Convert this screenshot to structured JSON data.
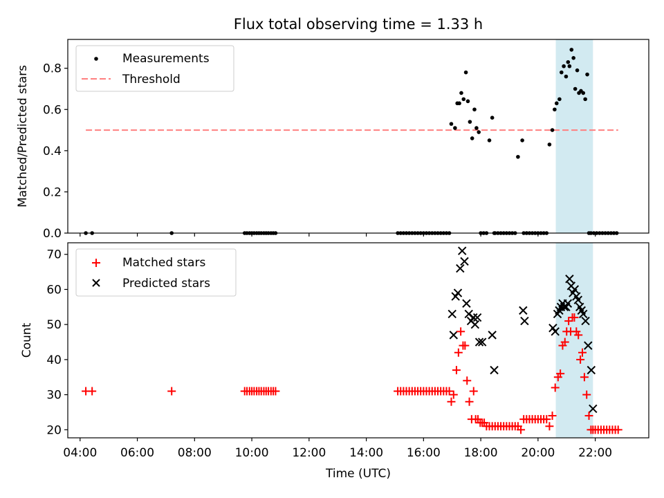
{
  "title": "Flux total observing time = 1.33 h",
  "top_panel": {
    "ylabel": "Matched/Predicted stars",
    "yticks": [
      "0.0",
      "0.2",
      "0.4",
      "0.6",
      "0.8"
    ],
    "legend": {
      "measurements": "Measurements",
      "threshold": "Threshold"
    }
  },
  "bottom_panel": {
    "ylabel": "Count",
    "xlabel": "Time (UTC)",
    "yticks": [
      "20",
      "30",
      "40",
      "50",
      "60",
      "70"
    ],
    "xticks": [
      "04:00",
      "06:00",
      "08:00",
      "10:00",
      "12:00",
      "14:00",
      "16:00",
      "18:00",
      "20:00",
      "22:00"
    ],
    "legend": {
      "matched": "Matched stars",
      "predicted": "Predicted stars"
    }
  },
  "chart_data": [
    {
      "type": "scatter",
      "panel": "top",
      "title": "Flux total observing time = 1.33 h",
      "xlabel": "",
      "ylabel": "Matched/Predicted stars",
      "x_unit": "hours UTC",
      "xlim": [
        3.57,
        23.87
      ],
      "ylim": [
        0.0,
        0.94
      ],
      "threshold": 0.5,
      "threshold_range": [
        4.2,
        22.8
      ],
      "shaded_region": [
        20.62,
        21.92
      ],
      "series": [
        {
          "name": "Measurements",
          "x": [
            4.2,
            4.42,
            7.2,
            9.75,
            9.83,
            9.92,
            10.0,
            10.08,
            10.17,
            10.25,
            10.33,
            10.42,
            10.5,
            10.58,
            10.67,
            10.75,
            10.83,
            15.1,
            15.2,
            15.3,
            15.4,
            15.5,
            15.6,
            15.7,
            15.8,
            15.9,
            16.0,
            16.1,
            16.2,
            16.3,
            16.4,
            16.5,
            16.6,
            16.7,
            16.8,
            16.9,
            16.97,
            17.1,
            17.18,
            17.25,
            17.32,
            17.4,
            17.48,
            17.55,
            17.62,
            17.7,
            17.78,
            17.85,
            17.93,
            18.0,
            18.1,
            18.2,
            18.3,
            18.4,
            18.47,
            18.5,
            18.6,
            18.7,
            18.8,
            18.9,
            19.0,
            19.1,
            19.2,
            19.3,
            19.45,
            19.5,
            19.6,
            19.7,
            19.8,
            19.9,
            20.0,
            20.1,
            20.2,
            20.3,
            20.4,
            20.5,
            20.58,
            20.65,
            20.75,
            20.82,
            20.9,
            20.98,
            21.05,
            21.1,
            21.17,
            21.24,
            21.3,
            21.37,
            21.43,
            21.5,
            21.58,
            21.65,
            21.72,
            21.78,
            21.85,
            21.95,
            22.05,
            22.15,
            22.25,
            22.35,
            22.45,
            22.55,
            22.65,
            22.75
          ],
          "y": [
            0.0,
            0.0,
            0.0,
            0.0,
            0.0,
            0.0,
            0.0,
            0.0,
            0.0,
            0.0,
            0.0,
            0.0,
            0.0,
            0.0,
            0.0,
            0.0,
            0.0,
            0.0,
            0.0,
            0.0,
            0.0,
            0.0,
            0.0,
            0.0,
            0.0,
            0.0,
            0.0,
            0.0,
            0.0,
            0.0,
            0.0,
            0.0,
            0.0,
            0.0,
            0.0,
            0.0,
            0.53,
            0.51,
            0.63,
            0.63,
            0.68,
            0.65,
            0.78,
            0.64,
            0.54,
            0.46,
            0.6,
            0.51,
            0.49,
            0.0,
            0.0,
            0.0,
            0.45,
            0.56,
            0.0,
            0.0,
            0.0,
            0.0,
            0.0,
            0.0,
            0.0,
            0.0,
            0.0,
            0.37,
            0.45,
            0.0,
            0.0,
            0.0,
            0.0,
            0.0,
            0.0,
            0.0,
            0.0,
            0.0,
            0.43,
            0.5,
            0.6,
            0.63,
            0.65,
            0.78,
            0.81,
            0.76,
            0.83,
            0.81,
            0.89,
            0.85,
            0.7,
            0.79,
            0.68,
            0.69,
            0.68,
            0.65,
            0.77,
            0.0,
            0.0,
            0.0,
            0.0,
            0.0,
            0.0,
            0.0,
            0.0,
            0.0,
            0.0,
            0.0
          ]
        }
      ]
    },
    {
      "type": "scatter",
      "panel": "bottom",
      "xlabel": "Time (UTC)",
      "ylabel": "Count",
      "x_unit": "hours UTC",
      "xlim": [
        3.57,
        23.87
      ],
      "ylim": [
        17.7,
        73.3
      ],
      "shaded_region": [
        20.62,
        21.92
      ],
      "series": [
        {
          "name": "Matched stars",
          "x": [
            4.2,
            4.42,
            7.2,
            9.75,
            9.83,
            9.92,
            10.0,
            10.08,
            10.17,
            10.25,
            10.33,
            10.42,
            10.5,
            10.58,
            10.67,
            10.75,
            10.83,
            15.1,
            15.2,
            15.3,
            15.4,
            15.5,
            15.6,
            15.7,
            15.8,
            15.9,
            16.0,
            16.1,
            16.2,
            16.3,
            16.4,
            16.5,
            16.6,
            16.7,
            16.8,
            16.9,
            16.97,
            17.05,
            17.15,
            17.22,
            17.3,
            17.38,
            17.45,
            17.52,
            17.6,
            17.68,
            17.75,
            17.82,
            17.9,
            17.98,
            18.05,
            18.12,
            18.2,
            18.3,
            18.4,
            18.5,
            18.6,
            18.7,
            18.8,
            18.9,
            19.0,
            19.1,
            19.2,
            19.3,
            19.4,
            19.5,
            19.6,
            19.7,
            19.8,
            19.9,
            20.0,
            20.1,
            20.2,
            20.3,
            20.4,
            20.5,
            20.6,
            20.7,
            20.78,
            20.86,
            20.94,
            21.0,
            21.07,
            21.14,
            21.2,
            21.27,
            21.34,
            21.41,
            21.48,
            21.55,
            21.62,
            21.7,
            21.78,
            21.85,
            21.92,
            22.0,
            22.1,
            22.2,
            22.3,
            22.4,
            22.5,
            22.6,
            22.7,
            22.8
          ],
          "y": [
            31,
            31,
            31,
            31,
            31,
            31,
            31,
            31,
            31,
            31,
            31,
            31,
            31,
            31,
            31,
            31,
            31,
            31,
            31,
            31,
            31,
            31,
            31,
            31,
            31,
            31,
            31,
            31,
            31,
            31,
            31,
            31,
            31,
            31,
            31,
            31,
            28,
            30,
            37,
            42,
            48,
            44,
            44,
            34,
            28,
            23,
            31,
            23,
            23,
            22,
            22,
            22,
            21,
            21,
            21,
            21,
            21,
            21,
            21,
            21,
            21,
            21,
            21,
            21,
            20,
            23,
            23,
            23,
            23,
            23,
            23,
            23,
            23,
            23,
            21,
            24,
            32,
            35,
            36,
            44,
            45,
            48,
            51,
            48,
            52,
            52,
            48,
            47,
            40,
            42,
            35,
            30,
            24,
            20,
            20,
            20,
            20,
            20,
            20,
            20,
            20,
            20,
            20,
            20
          ],
          "color": "#ff0000"
        },
        {
          "name": "Predicted stars",
          "x": [
            17.0,
            17.05,
            17.12,
            17.2,
            17.28,
            17.35,
            17.43,
            17.5,
            17.58,
            17.66,
            17.74,
            17.8,
            17.88,
            17.95,
            18.05,
            18.4,
            18.47,
            19.48,
            19.53,
            20.52,
            20.6,
            20.68,
            20.74,
            20.8,
            20.86,
            20.92,
            20.98,
            21.04,
            21.1,
            21.16,
            21.22,
            21.28,
            21.34,
            21.4,
            21.46,
            21.52,
            21.58,
            21.66,
            21.75,
            21.86,
            21.92
          ],
          "y": [
            53,
            47,
            58,
            59,
            66,
            71,
            68,
            56,
            53,
            51,
            52,
            50,
            52,
            45,
            45,
            47,
            37,
            54,
            51,
            49,
            48,
            53,
            54,
            55,
            56,
            55,
            55,
            56,
            63,
            61,
            59,
            60,
            58,
            57,
            55,
            54,
            53,
            51,
            44,
            37,
            26
          ],
          "color": "#000000"
        }
      ]
    }
  ],
  "colors": {
    "threshold": "#ff7f7f",
    "shade": "#add8e6",
    "matched": "#ff0000",
    "predicted": "#000000",
    "measurements": "#000000"
  }
}
